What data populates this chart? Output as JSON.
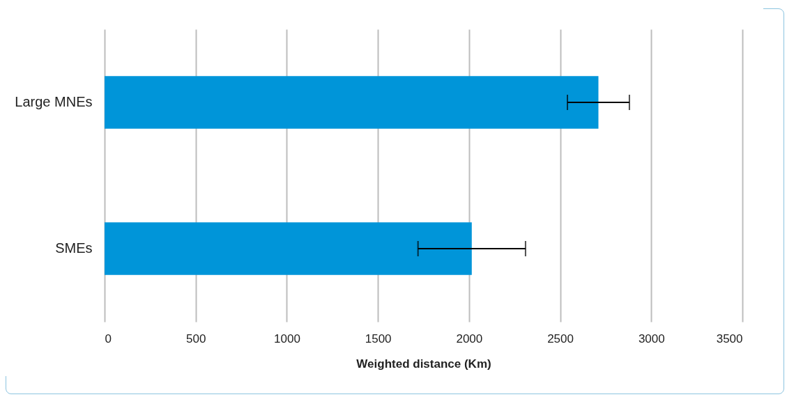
{
  "chart_data": {
    "type": "bar",
    "orientation": "horizontal",
    "xlabel": "Weighted distance (Km)",
    "categories": [
      "Large MNEs",
      "SMEs"
    ],
    "series": [
      {
        "color": "#0095d9",
        "values": [
          2710,
          2015
        ],
        "errors": [
          [
            2540,
            2880
          ],
          [
            1720,
            2310
          ]
        ]
      }
    ],
    "xlim": [
      0,
      3500
    ],
    "xticks": [
      0,
      500,
      1000,
      1500,
      2000,
      2500,
      3000,
      3500
    ],
    "grid": "x"
  }
}
